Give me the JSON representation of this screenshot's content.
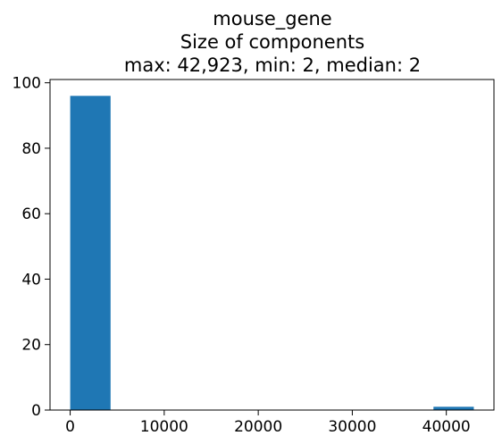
{
  "chart_data": {
    "type": "bar",
    "title_lines": [
      "mouse_gene",
      "Size of components",
      "max: 42,923, min: 2, median: 2"
    ],
    "xlabel": "",
    "ylabel": "",
    "xlim": [
      -2144,
      45065
    ],
    "ylim": [
      0,
      101
    ],
    "x_ticks": [
      0,
      10000,
      20000,
      30000,
      40000
    ],
    "y_ticks": [
      0,
      20,
      40,
      60,
      80,
      100
    ],
    "bar_color": "#1f77b4",
    "bins": [
      {
        "x0": 2,
        "x1": 4294,
        "count": 96
      },
      {
        "x0": 4294,
        "x1": 8586,
        "count": 0
      },
      {
        "x0": 8586,
        "x1": 12878,
        "count": 0
      },
      {
        "x0": 12878,
        "x1": 17170,
        "count": 0
      },
      {
        "x0": 17170,
        "x1": 21462,
        "count": 0
      },
      {
        "x0": 21462,
        "x1": 25755,
        "count": 0
      },
      {
        "x0": 25755,
        "x1": 30047,
        "count": 0
      },
      {
        "x0": 30047,
        "x1": 34339,
        "count": 0
      },
      {
        "x0": 34339,
        "x1": 38631,
        "count": 0
      },
      {
        "x0": 38631,
        "x1": 42923,
        "count": 1
      }
    ]
  }
}
